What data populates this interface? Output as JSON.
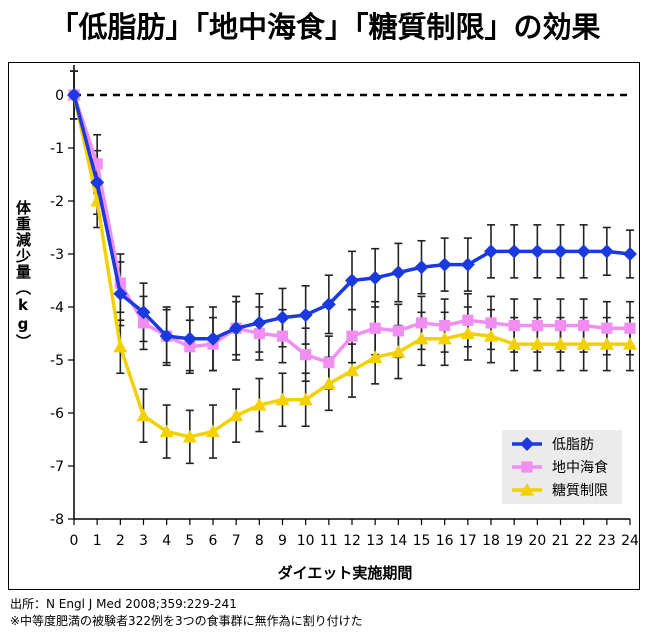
{
  "chart_data": {
    "type": "line",
    "title": "「低脂肪」「地中海食」「糖質制限」の効果",
    "xlabel": "ダイエット実施期間",
    "ylabel": "体重減少量（kg）",
    "x": [
      0,
      1,
      2,
      3,
      4,
      5,
      6,
      7,
      8,
      9,
      10,
      11,
      12,
      13,
      14,
      15,
      16,
      17,
      18,
      19,
      20,
      21,
      22,
      23,
      24
    ],
    "xlim": [
      0,
      24
    ],
    "ylim": [
      -8,
      0
    ],
    "yticks": [
      0,
      -1,
      -2,
      -3,
      -4,
      -5,
      -6,
      -7,
      -8
    ],
    "reference_line": 0,
    "legend_position": "bottom-right",
    "grid": false,
    "series": [
      {
        "name": "低脂肪",
        "color": "#1a3ae0",
        "marker": "diamond",
        "values": [
          0,
          -1.65,
          -3.75,
          -4.1,
          -4.55,
          -4.6,
          -4.6,
          -4.4,
          -4.3,
          -4.2,
          -4.15,
          -3.95,
          -3.5,
          -3.45,
          -3.35,
          -3.25,
          -3.2,
          -3.2,
          -2.95,
          -2.95,
          -2.95,
          -2.95,
          -2.95,
          -2.95,
          -3.0
        ],
        "error": [
          0.45,
          0.6,
          0.6,
          0.55,
          0.55,
          0.6,
          0.6,
          0.6,
          0.55,
          0.55,
          0.55,
          0.55,
          0.55,
          0.55,
          0.55,
          0.5,
          0.5,
          0.5,
          0.5,
          0.5,
          0.5,
          0.5,
          0.5,
          0.45,
          0.45
        ]
      },
      {
        "name": "地中海食",
        "color": "#f28ef2",
        "marker": "square",
        "values": [
          0,
          -1.3,
          -3.55,
          -4.3,
          -4.55,
          -4.75,
          -4.7,
          -4.4,
          -4.5,
          -4.55,
          -4.9,
          -5.05,
          -4.55,
          -4.4,
          -4.45,
          -4.3,
          -4.35,
          -4.25,
          -4.3,
          -4.35,
          -4.35,
          -4.35,
          -4.35,
          -4.4,
          -4.4
        ],
        "error": [
          0.45,
          0.55,
          0.55,
          0.5,
          0.5,
          0.5,
          0.5,
          0.5,
          0.5,
          0.5,
          0.5,
          0.5,
          0.5,
          0.5,
          0.5,
          0.5,
          0.5,
          0.5,
          0.5,
          0.5,
          0.5,
          0.5,
          0.5,
          0.5,
          0.5
        ]
      },
      {
        "name": "糖質制限",
        "color": "#f5d000",
        "marker": "triangle",
        "values": [
          0,
          -2.0,
          -4.75,
          -6.05,
          -6.35,
          -6.45,
          -6.35,
          -6.05,
          -5.85,
          -5.75,
          -5.75,
          -5.45,
          -5.2,
          -4.95,
          -4.85,
          -4.6,
          -4.6,
          -4.5,
          -4.55,
          -4.7,
          -4.7,
          -4.7,
          -4.7,
          -4.7,
          -4.7
        ],
        "error": [
          0.45,
          0.5,
          0.5,
          0.5,
          0.5,
          0.5,
          0.5,
          0.5,
          0.5,
          0.5,
          0.5,
          0.5,
          0.5,
          0.5,
          0.5,
          0.5,
          0.5,
          0.5,
          0.5,
          0.5,
          0.5,
          0.5,
          0.5,
          0.5,
          0.5
        ]
      }
    ]
  },
  "footer": {
    "source": "出所：N Engl J Med 2008;359:229-241",
    "note": "※中等度肥満の被験者322例を3つの食事群に無作為に割り付けた"
  }
}
